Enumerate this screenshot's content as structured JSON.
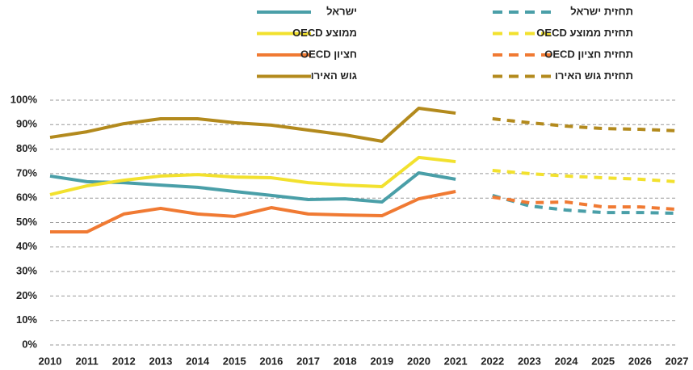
{
  "chart_data": {
    "type": "line",
    "x": [
      2010,
      2011,
      2012,
      2013,
      2014,
      2015,
      2016,
      2017,
      2018,
      2019,
      2020,
      2021,
      2022,
      2023,
      2024,
      2025,
      2026,
      2027
    ],
    "series": [
      {
        "name": "ישראל",
        "color": "#4a9fa8",
        "dashed": false,
        "values": [
          69.0,
          66.7,
          66.3,
          65.3,
          64.4,
          62.7,
          61.1,
          59.4,
          59.7,
          58.4,
          70.3,
          67.7,
          null,
          null,
          null,
          null,
          null,
          null
        ]
      },
      {
        "name": "ממוצע OECD",
        "color": "#f2e12e",
        "dashed": false,
        "values": [
          61.4,
          65.0,
          67.3,
          69.0,
          69.6,
          68.6,
          68.3,
          66.3,
          65.3,
          64.7,
          76.6,
          74.9,
          null,
          null,
          null,
          null,
          null,
          null
        ]
      },
      {
        "name": "חציון OECD",
        "color": "#f07a33",
        "dashed": false,
        "values": [
          46.2,
          46.2,
          53.5,
          55.8,
          53.5,
          52.5,
          56.1,
          53.5,
          53.1,
          52.8,
          59.7,
          62.7,
          null,
          null,
          null,
          null,
          null,
          null
        ]
      },
      {
        "name": "גוש האירו",
        "color": "#b38a1d",
        "dashed": false,
        "values": [
          84.8,
          87.1,
          90.4,
          92.4,
          92.4,
          90.8,
          89.8,
          87.8,
          85.8,
          83.2,
          96.7,
          94.7,
          null,
          null,
          null,
          null,
          null,
          null
        ]
      },
      {
        "name": "תחזית ישראל",
        "color": "#4a9fa8",
        "dashed": true,
        "values": [
          null,
          null,
          null,
          null,
          null,
          null,
          null,
          null,
          null,
          null,
          null,
          null,
          61.1,
          56.8,
          55.1,
          54.1,
          54.1,
          53.8
        ]
      },
      {
        "name": "תחזית ממוצע OECD",
        "color": "#f2e12e",
        "dashed": true,
        "values": [
          null,
          null,
          null,
          null,
          null,
          null,
          null,
          null,
          null,
          null,
          null,
          null,
          71.3,
          70.0,
          69.0,
          68.3,
          67.7,
          66.7
        ]
      },
      {
        "name": "תחזית חציון OECD",
        "color": "#f07a33",
        "dashed": true,
        "values": [
          null,
          null,
          null,
          null,
          null,
          null,
          null,
          null,
          null,
          null,
          null,
          null,
          60.4,
          58.1,
          58.4,
          56.4,
          56.4,
          55.4
        ]
      },
      {
        "name": "תחזית גוש האירו",
        "color": "#b38a1d",
        "dashed": true,
        "values": [
          null,
          null,
          null,
          null,
          null,
          null,
          null,
          null,
          null,
          null,
          null,
          null,
          92.4,
          90.8,
          89.4,
          88.4,
          88.1,
          87.5
        ]
      }
    ],
    "xlim": [
      2010,
      2027
    ],
    "xticks": [
      2010,
      2011,
      2012,
      2013,
      2014,
      2015,
      2016,
      2017,
      2018,
      2019,
      2020,
      2021,
      2022,
      2023,
      2024,
      2025,
      2026,
      2027
    ],
    "ylim": [
      0,
      100
    ],
    "yticks": [
      {
        "value": 0,
        "label": "0%"
      },
      {
        "value": 10,
        "label": "10%"
      },
      {
        "value": 20,
        "label": "20%"
      },
      {
        "value": 30,
        "label": "30%"
      },
      {
        "value": 40,
        "label": "40%"
      },
      {
        "value": 50,
        "label": "50%"
      },
      {
        "value": 60,
        "label": "60%"
      },
      {
        "value": 70,
        "label": "70%"
      },
      {
        "value": 80,
        "label": "80%"
      },
      {
        "value": 90,
        "label": "90%"
      },
      {
        "value": 100,
        "label": "100%"
      }
    ],
    "grid": true
  }
}
